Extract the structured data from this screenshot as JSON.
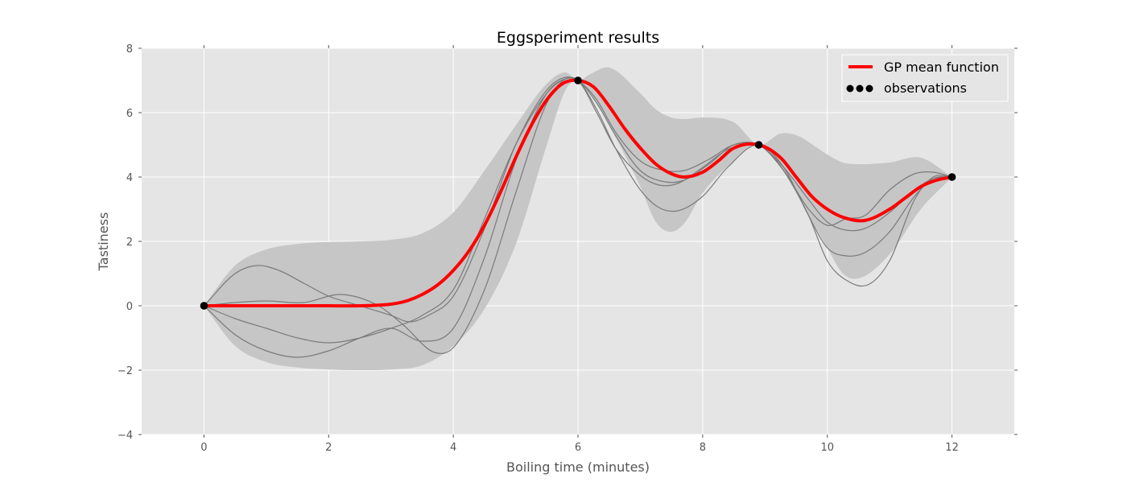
{
  "chart_data": {
    "type": "line",
    "title": "Eggsperiment results",
    "xlabel": "Boiling time (minutes)",
    "ylabel": "Tastiness",
    "xlim": [
      -1,
      13
    ],
    "ylim": [
      -4,
      8
    ],
    "xticks": [
      0,
      2,
      4,
      6,
      8,
      10,
      12
    ],
    "yticks": [
      -4,
      -2,
      0,
      2,
      4,
      6,
      8
    ],
    "xtick_labels": [
      "0",
      "2",
      "4",
      "6",
      "8",
      "10",
      "12"
    ],
    "ytick_labels": [
      "−4",
      "−2",
      "0",
      "2",
      "4",
      "6",
      "8"
    ],
    "grid": true,
    "legend_position": "top-right",
    "legend": [
      {
        "label": "GP mean function",
        "kind": "line",
        "color": "#ff0000"
      },
      {
        "label": "observations",
        "kind": "markers",
        "color": "#000000"
      }
    ],
    "colors": {
      "background": "#e5e5e5",
      "band": "#c6c6c6",
      "samples": "#7a7a7a",
      "mean": "#ff0000",
      "observations": "#000000",
      "grid": "#ffffff"
    },
    "observations": {
      "x": [
        0,
        6,
        8.9,
        12
      ],
      "y": [
        0,
        7,
        5,
        4
      ]
    },
    "mean": {
      "x": [
        0,
        0.5,
        1,
        1.5,
        2,
        2.5,
        3,
        3.25,
        3.5,
        3.75,
        4,
        4.25,
        4.5,
        4.75,
        5,
        5.25,
        5.5,
        5.75,
        6,
        6.25,
        6.5,
        6.75,
        7,
        7.25,
        7.5,
        7.7,
        8,
        8.25,
        8.5,
        8.9,
        9.25,
        9.5,
        9.75,
        10,
        10.25,
        10.6,
        11,
        11.25,
        11.5,
        11.75,
        12
      ],
      "y": [
        0,
        0,
        0,
        0,
        0,
        0,
        0.05,
        0.15,
        0.35,
        0.65,
        1.1,
        1.7,
        2.5,
        3.5,
        4.6,
        5.6,
        6.4,
        6.9,
        7.0,
        6.8,
        6.2,
        5.5,
        4.9,
        4.4,
        4.1,
        4.0,
        4.15,
        4.5,
        4.9,
        5.0,
        4.6,
        4.0,
        3.4,
        3.0,
        2.75,
        2.65,
        3.0,
        3.35,
        3.7,
        3.9,
        4.0
      ]
    },
    "band": {
      "x": [
        0,
        0.5,
        1,
        1.5,
        2,
        2.5,
        3,
        3.5,
        4,
        4.5,
        5,
        5.5,
        5.8,
        6,
        6.2,
        6.5,
        7,
        7.25,
        7.5,
        7.7,
        8,
        8.5,
        8.9,
        9.25,
        9.5,
        10,
        10.25,
        10.5,
        11,
        11.5,
        12
      ],
      "upper": [
        0,
        1.25,
        1.75,
        1.92,
        1.98,
        2.0,
        2.05,
        2.25,
        2.9,
        4.2,
        5.6,
        6.9,
        7.25,
        7.0,
        7.2,
        7.4,
        6.6,
        6.1,
        5.85,
        5.8,
        5.85,
        5.7,
        5.0,
        5.35,
        5.3,
        4.7,
        4.45,
        4.4,
        4.45,
        4.6,
        4.0
      ],
      "lower": [
        0,
        -1.25,
        -1.75,
        -1.92,
        -1.98,
        -2.0,
        -1.98,
        -1.85,
        -1.25,
        -0.1,
        1.9,
        5.0,
        6.7,
        7.0,
        6.6,
        5.6,
        3.7,
        2.6,
        2.3,
        2.55,
        3.5,
        4.5,
        5.0,
        4.3,
        3.5,
        1.8,
        1.0,
        0.85,
        1.6,
        3.0,
        4.0
      ]
    },
    "samples": [
      {
        "x": [
          0,
          0.5,
          0.85,
          1.2,
          1.6,
          2,
          2.5,
          3,
          3.3,
          3.6,
          4,
          4.5,
          5,
          5.5,
          5.8,
          6,
          6.3,
          6.6,
          7,
          7.4,
          7.7,
          8.1,
          8.5,
          8.9,
          9.3,
          9.7,
          10,
          10.3,
          10.6,
          11,
          11.4,
          11.7,
          12
        ],
        "y": [
          0,
          1.0,
          1.25,
          1.1,
          0.7,
          0.3,
          0.0,
          -0.3,
          -0.5,
          -0.3,
          0.3,
          2.4,
          5.0,
          6.7,
          7.1,
          7.0,
          6.4,
          5.4,
          4.5,
          4.2,
          4.2,
          4.55,
          5.0,
          5.0,
          4.2,
          3.0,
          2.5,
          2.7,
          2.8,
          3.6,
          4.1,
          4.15,
          4.0
        ]
      },
      {
        "x": [
          0,
          0.5,
          1,
          1.5,
          2,
          2.5,
          3,
          3.5,
          4,
          4.5,
          5,
          5.5,
          5.8,
          6,
          6.3,
          6.6,
          7,
          7.4,
          7.7,
          8.1,
          8.5,
          8.9,
          9.3,
          9.7,
          10,
          10.3,
          10.6,
          11,
          11.4,
          11.7,
          12
        ],
        "y": [
          0,
          -0.4,
          -0.7,
          -1.0,
          -1.15,
          -1.0,
          -0.7,
          -0.3,
          0.5,
          2.7,
          5.0,
          6.6,
          7.05,
          7.0,
          6.3,
          5.3,
          4.2,
          3.85,
          3.9,
          4.4,
          5.0,
          5.0,
          4.3,
          3.3,
          2.6,
          2.35,
          2.4,
          2.9,
          3.6,
          3.95,
          4.0
        ]
      },
      {
        "x": [
          0,
          0.5,
          1,
          1.6,
          2.2,
          2.8,
          3.2,
          3.7,
          4,
          4.5,
          5,
          5.5,
          5.8,
          6,
          6.3,
          6.6,
          7,
          7.3,
          7.6,
          8,
          8.4,
          8.9,
          9.3,
          9.7,
          10,
          10.3,
          10.6,
          11,
          11.4,
          11.7,
          12
        ],
        "y": [
          0,
          0.1,
          0.15,
          0.1,
          0.35,
          0.0,
          -0.6,
          -1.45,
          -1.3,
          0.5,
          3.5,
          6.3,
          7.05,
          7.0,
          6.1,
          4.9,
          3.6,
          3.05,
          2.95,
          3.4,
          4.3,
          5.0,
          4.3,
          2.8,
          1.8,
          1.55,
          1.65,
          2.3,
          3.4,
          3.95,
          4.0
        ]
      },
      {
        "x": [
          0,
          0.5,
          1,
          1.5,
          2,
          2.5,
          3,
          3.5,
          4,
          4.5,
          5,
          5.5,
          5.8,
          6,
          6.3,
          6.6,
          7,
          7.3,
          7.6,
          8,
          8.4,
          8.9,
          9.3,
          9.7,
          10,
          10.3,
          10.65,
          11,
          11.4,
          11.7,
          12
        ],
        "y": [
          0,
          -0.9,
          -1.4,
          -1.6,
          -1.4,
          -1.0,
          -0.7,
          -1.1,
          -0.7,
          1.5,
          4.5,
          6.6,
          7.05,
          7.0,
          6.0,
          4.9,
          4.05,
          3.75,
          3.8,
          4.3,
          4.85,
          5.0,
          4.2,
          2.8,
          1.4,
          0.8,
          0.65,
          1.4,
          3.3,
          4.0,
          4.0
        ]
      }
    ]
  }
}
